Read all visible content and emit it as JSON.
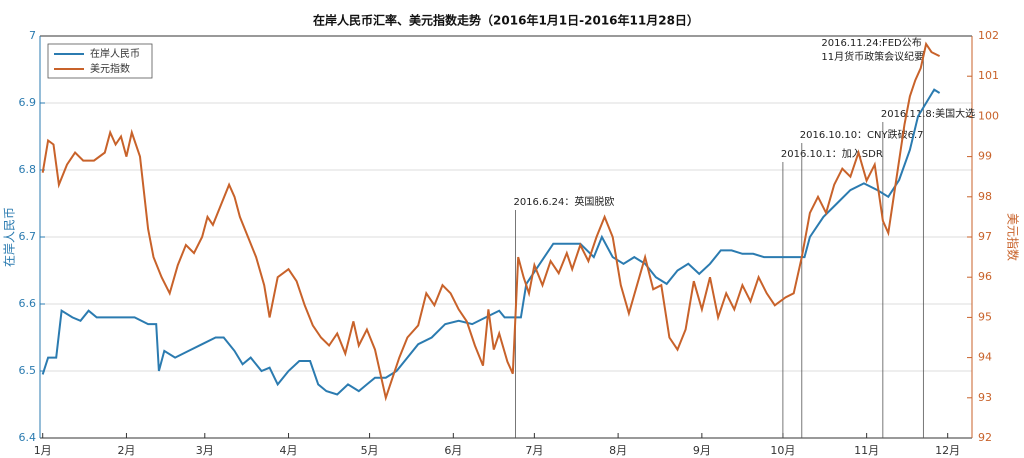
{
  "chart_data": {
    "type": "line",
    "title": "在岸人民币汇率、美元指数走势（2016年1月1日-2016年11月28日）",
    "y_label": "在岸人民币",
    "y2_label": "美元指数",
    "xlim": [
      0,
      345
    ],
    "xticks": [
      {
        "value": 1,
        "label": "1月"
      },
      {
        "value": 32,
        "label": "2月"
      },
      {
        "value": 61,
        "label": "3月"
      },
      {
        "value": 92,
        "label": "4月"
      },
      {
        "value": 122,
        "label": "5月"
      },
      {
        "value": 153,
        "label": "6月"
      },
      {
        "value": 183,
        "label": "7月"
      },
      {
        "value": 214,
        "label": "8月"
      },
      {
        "value": 245,
        "label": "9月"
      },
      {
        "value": 275,
        "label": "10月"
      },
      {
        "value": 306,
        "label": "11月"
      },
      {
        "value": 336,
        "label": "12月"
      }
    ],
    "ylim": [
      6.4,
      7
    ],
    "yticks": [
      6.4,
      6.5,
      6.6,
      6.7,
      6.8,
      6.9,
      7
    ],
    "y2lim": [
      92,
      102
    ],
    "y2ticks": [
      92,
      93,
      94,
      95,
      96,
      97,
      98,
      99,
      100,
      101,
      102
    ],
    "grid": true,
    "legend": "upper-left",
    "series": [
      {
        "name": "在岸人民币",
        "color": "#2b7bb0",
        "x": [
          1,
          3,
          6,
          8,
          12,
          15,
          18,
          21,
          25,
          30,
          35,
          40,
          43,
          44,
          46,
          50,
          55,
          60,
          65,
          68,
          72,
          75,
          78,
          82,
          85,
          88,
          92,
          96,
          100,
          103,
          106,
          110,
          114,
          118,
          121,
          124,
          128,
          132,
          136,
          140,
          145,
          150,
          155,
          160,
          165,
          170,
          172,
          176,
          178,
          180,
          185,
          190,
          195,
          200,
          205,
          208,
          212,
          216,
          220,
          224,
          228,
          232,
          236,
          240,
          244,
          248,
          252,
          256,
          260,
          264,
          268,
          272,
          276,
          280,
          283,
          285,
          290,
          295,
          300,
          305,
          310,
          314,
          318,
          322,
          325,
          328,
          331,
          333
        ],
        "values": [
          6.495,
          6.52,
          6.52,
          6.59,
          6.58,
          6.575,
          6.59,
          6.58,
          6.58,
          6.58,
          6.58,
          6.57,
          6.57,
          6.5,
          6.53,
          6.52,
          6.53,
          6.54,
          6.55,
          6.55,
          6.53,
          6.51,
          6.52,
          6.5,
          6.505,
          6.48,
          6.5,
          6.515,
          6.515,
          6.48,
          6.47,
          6.465,
          6.48,
          6.47,
          6.48,
          6.49,
          6.49,
          6.5,
          6.52,
          6.54,
          6.55,
          6.57,
          6.575,
          6.57,
          6.58,
          6.59,
          6.58,
          6.58,
          6.58,
          6.63,
          6.66,
          6.69,
          6.69,
          6.69,
          6.67,
          6.7,
          6.67,
          6.66,
          6.67,
          6.66,
          6.64,
          6.63,
          6.65,
          6.66,
          6.645,
          6.66,
          6.68,
          6.68,
          6.675,
          6.675,
          6.67,
          6.67,
          6.67,
          6.67,
          6.67,
          6.7,
          6.73,
          6.75,
          6.77,
          6.78,
          6.77,
          6.76,
          6.785,
          6.83,
          6.88,
          6.9,
          6.92,
          6.915
        ]
      },
      {
        "name": "美元指数",
        "color": "#c8622a",
        "axis": "y2",
        "x": [
          1,
          3,
          5,
          7,
          10,
          13,
          16,
          20,
          24,
          26,
          28,
          30,
          32,
          34,
          37,
          40,
          42,
          45,
          48,
          51,
          54,
          57,
          60,
          62,
          64,
          67,
          70,
          72,
          74,
          77,
          80,
          83,
          85,
          88,
          92,
          95,
          98,
          101,
          104,
          107,
          110,
          113,
          116,
          118,
          121,
          124,
          126,
          128,
          130,
          133,
          136,
          140,
          143,
          146,
          149,
          152,
          155,
          158,
          161,
          164,
          166,
          168,
          170,
          173,
          175,
          177,
          179,
          181,
          183,
          186,
          189,
          192,
          195,
          197,
          200,
          203,
          206,
          209,
          212,
          215,
          218,
          221,
          224,
          227,
          230,
          233,
          236,
          239,
          242,
          245,
          248,
          251,
          254,
          257,
          260,
          263,
          266,
          269,
          272,
          276,
          279,
          282,
          285,
          288,
          291,
          294,
          297,
          300,
          303,
          306,
          309,
          312,
          314,
          316,
          318,
          320,
          322,
          324,
          326,
          328,
          330,
          333
        ],
        "values": [
          98.6,
          99.4,
          99.3,
          98.3,
          98.8,
          99.1,
          98.9,
          98.9,
          99.1,
          99.6,
          99.3,
          99.5,
          99,
          99.6,
          99,
          97.2,
          96.5,
          96,
          95.6,
          96.3,
          96.8,
          96.6,
          97,
          97.5,
          97.3,
          97.8,
          98.3,
          98,
          97.5,
          97,
          96.5,
          95.8,
          95,
          96,
          96.2,
          95.9,
          95.3,
          94.8,
          94.5,
          94.3,
          94.6,
          94.1,
          94.9,
          94.3,
          94.7,
          94.2,
          93.6,
          93,
          93.4,
          94,
          94.5,
          94.8,
          95.6,
          95.3,
          95.8,
          95.6,
          95.2,
          94.9,
          94.3,
          93.8,
          95.2,
          94.2,
          94.6,
          93.9,
          93.6,
          96.5,
          96,
          95.6,
          96.3,
          95.8,
          96.4,
          96.1,
          96.6,
          96.2,
          96.8,
          96.4,
          97,
          97.5,
          97,
          95.8,
          95.1,
          95.8,
          96.5,
          95.7,
          95.8,
          94.5,
          94.2,
          94.7,
          95.9,
          95.2,
          96,
          95,
          95.6,
          95.2,
          95.8,
          95.4,
          96,
          95.6,
          95.3,
          95.5,
          95.6,
          96.5,
          97.6,
          98,
          97.6,
          98.3,
          98.7,
          98.5,
          99.1,
          98.4,
          98.8,
          97.4,
          97.1,
          98,
          98.9,
          99.8,
          100.5,
          100.9,
          101.2,
          101.8,
          101.6,
          101.5
        ]
      }
    ],
    "annotations": [
      {
        "x": 176,
        "text": [
          "2016.6.24：英国脱欧"
        ]
      },
      {
        "x": 275,
        "text": [
          "2016.10.1：加入SDR"
        ]
      },
      {
        "x": 282,
        "text": [
          "2016.10.10：CNY跌破6.7"
        ]
      },
      {
        "x": 312,
        "text": [
          "2016.11.8:美国大选"
        ]
      },
      {
        "x": 327,
        "text": [
          "2016.11.24:FED公布",
          "11月货币政策会议纪要"
        ]
      }
    ]
  }
}
